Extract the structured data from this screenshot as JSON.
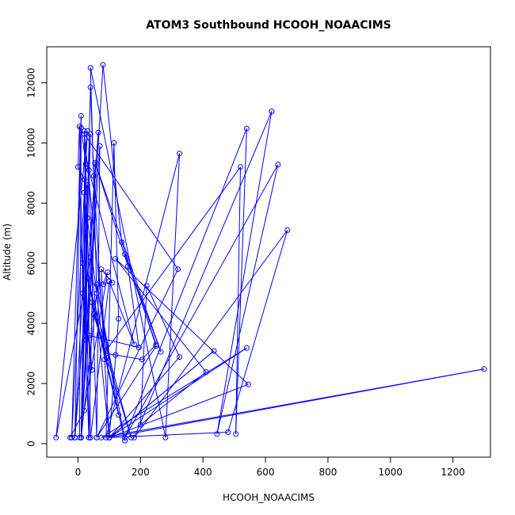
{
  "chart_data": {
    "type": "line",
    "title": "ATOM3 Southbound HCOOH_NOAACIMS",
    "xlabel": "HCOOH_NOAACIMS",
    "ylabel": "Altitude (m)",
    "xlim": [
      -100,
      1320
    ],
    "ylim": [
      -450,
      13200
    ],
    "x_ticks": [
      0,
      200,
      400,
      600,
      800,
      1000,
      1200
    ],
    "x_tick_labels": [
      "0",
      "200",
      "400",
      "600",
      "800",
      "1000",
      "1200"
    ],
    "y_ticks": [
      0,
      2000,
      4000,
      6000,
      8000,
      10000,
      12000
    ],
    "y_tick_labels": [
      "0",
      "2000",
      "4000",
      "6000",
      "8000",
      "10000",
      "12000"
    ],
    "grid": false,
    "color": "#0000ff",
    "marker": "open-circle",
    "series": [
      {
        "points": [
          [
            5,
            200
          ],
          [
            10,
            10500
          ],
          [
            25,
            9300
          ],
          [
            15,
            6000
          ],
          [
            35,
            200
          ],
          [
            20,
            10400
          ],
          [
            30,
            7500
          ],
          [
            40,
            200
          ],
          [
            100,
            5400
          ],
          [
            180,
            3300
          ],
          [
            35,
            9100
          ],
          [
            60,
            200
          ],
          [
            70,
            9900
          ],
          [
            10,
            200
          ],
          [
            40,
            11850
          ],
          [
            50,
            8900
          ],
          [
            100,
            200
          ],
          [
            130,
            4150
          ],
          [
            115,
            10000
          ],
          [
            90,
            200
          ],
          [
            325,
            9650
          ],
          [
            280,
            200
          ],
          [
            40,
            12500
          ],
          [
            60,
            5000
          ],
          [
            10,
            200
          ],
          [
            80,
            12600
          ],
          [
            140,
            6700
          ],
          [
            250,
            3250
          ],
          [
            60,
            200
          ],
          [
            320,
            5800
          ],
          [
            20,
            10300
          ],
          [
            90,
            3100
          ],
          [
            520,
            9200
          ],
          [
            505,
            320
          ],
          [
            540,
            10480
          ],
          [
            150,
            200
          ],
          [
            640,
            9280
          ],
          [
            445,
            320
          ],
          [
            620,
            11050
          ],
          [
            180,
            200
          ],
          [
            670,
            7100
          ],
          [
            480,
            380
          ],
          [
            100,
            200
          ],
          [
            435,
            3080
          ],
          [
            100,
            200
          ],
          [
            540,
            3180
          ],
          [
            75,
            200
          ],
          [
            1300,
            2480
          ],
          [
            100,
            200
          ],
          [
            545,
            1970
          ],
          [
            120,
            6150
          ],
          [
            410,
            2380
          ],
          [
            200,
            630
          ],
          [
            220,
            5250
          ],
          [
            325,
            2880
          ],
          [
            100,
            200
          ],
          [
            40,
            6200
          ],
          [
            -70,
            200
          ],
          [
            30,
            10400
          ],
          [
            -20,
            200
          ],
          [
            10,
            10900
          ],
          [
            -10,
            200
          ],
          [
            65,
            10350
          ],
          [
            -10,
            200
          ],
          [
            40,
            10300
          ],
          [
            10,
            200
          ],
          [
            25,
            9300
          ],
          [
            10,
            200
          ],
          [
            55,
            9300
          ],
          [
            35,
            200
          ],
          [
            45,
            4700
          ],
          [
            130,
            950
          ],
          [
            60,
            5300
          ],
          [
            150,
            100
          ],
          [
            30,
            5500
          ],
          [
            170,
            200
          ],
          [
            50,
            4300
          ],
          [
            90,
            3000
          ],
          [
            120,
            2950
          ],
          [
            205,
            2800
          ],
          [
            250,
            3300
          ],
          [
            150,
            6300
          ],
          [
            265,
            3050
          ],
          [
            55,
            9350
          ],
          [
            160,
            5900
          ],
          [
            195,
            3200
          ],
          [
            35,
            3600
          ],
          [
            45,
            2450
          ],
          [
            15,
            5000
          ],
          [
            5,
            10550
          ],
          [
            0,
            9200
          ],
          [
            20,
            8800
          ],
          [
            25,
            3450
          ],
          [
            30,
            8600
          ],
          [
            20,
            8350
          ],
          [
            85,
            2800
          ],
          [
            75,
            5800
          ],
          [
            110,
            5350
          ],
          [
            80,
            5300
          ],
          [
            95,
            5700
          ],
          [
            20,
            1100
          ],
          [
            -25,
            200
          ]
        ]
      }
    ]
  }
}
